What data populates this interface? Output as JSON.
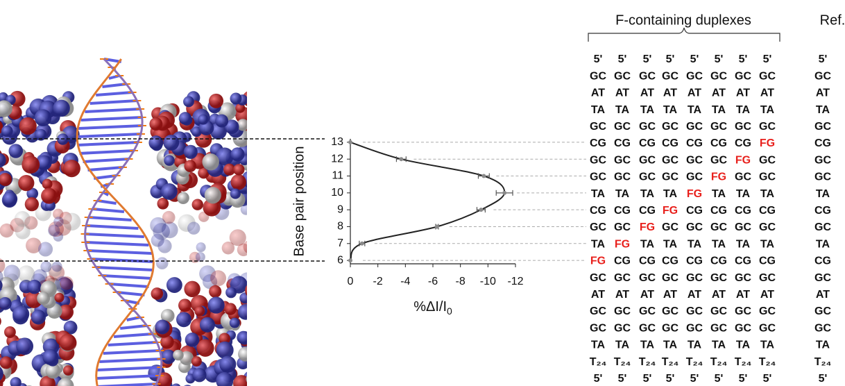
{
  "chart_data": {
    "type": "line",
    "orientation": "horizontal",
    "ylabel": "Base pair position",
    "xlabel": "%ΔI/I",
    "xlabel_sub": "0",
    "positions": [
      13,
      12,
      11,
      10,
      9,
      8,
      7,
      6
    ],
    "values": [
      0,
      -3.7,
      -9.7,
      -11.2,
      -9.5,
      -6.3,
      -0.85,
      0
    ],
    "errors": [
      0,
      0.35,
      0.4,
      0.6,
      0.3,
      0.1,
      0.2,
      0
    ],
    "color": "#222222",
    "marker_color": "#8a8a8a",
    "xlim": [
      0,
      -12
    ],
    "xticks": [
      0,
      -2,
      -4,
      -6,
      -8,
      -10,
      -12
    ],
    "ylim": [
      5.8,
      13.2
    ],
    "yticks": [
      6,
      7,
      8,
      9,
      10,
      11,
      12,
      13
    ]
  },
  "sequences": {
    "header": "F-containing duplexes",
    "ref_header": "Ref.",
    "highlight": "FG",
    "highlight_color": "#e8201c",
    "rows": [
      [
        "5'",
        "5'",
        "5'",
        "5'",
        "5'",
        "5'",
        "5'",
        "5'",
        "5'"
      ],
      [
        "GC",
        "GC",
        "GC",
        "GC",
        "GC",
        "GC",
        "GC",
        "GC",
        "GC"
      ],
      [
        "AT",
        "AT",
        "AT",
        "AT",
        "AT",
        "AT",
        "AT",
        "AT",
        "AT"
      ],
      [
        "TA",
        "TA",
        "TA",
        "TA",
        "TA",
        "TA",
        "TA",
        "TA",
        "TA"
      ],
      [
        "GC",
        "GC",
        "GC",
        "GC",
        "GC",
        "GC",
        "GC",
        "GC",
        "GC"
      ],
      [
        "CG",
        "CG",
        "CG",
        "CG",
        "CG",
        "CG",
        "CG",
        "FG",
        "CG"
      ],
      [
        "GC",
        "GC",
        "GC",
        "GC",
        "GC",
        "GC",
        "FG",
        "GC",
        "GC"
      ],
      [
        "GC",
        "GC",
        "GC",
        "GC",
        "GC",
        "FG",
        "GC",
        "GC",
        "GC"
      ],
      [
        "TA",
        "TA",
        "TA",
        "TA",
        "FG",
        "TA",
        "TA",
        "TA",
        "TA"
      ],
      [
        "CG",
        "CG",
        "CG",
        "FG",
        "CG",
        "CG",
        "CG",
        "CG",
        "CG"
      ],
      [
        "GC",
        "GC",
        "FG",
        "GC",
        "GC",
        "GC",
        "GC",
        "GC",
        "GC"
      ],
      [
        "TA",
        "FG",
        "TA",
        "TA",
        "TA",
        "TA",
        "TA",
        "TA",
        "TA"
      ],
      [
        "FG",
        "CG",
        "CG",
        "CG",
        "CG",
        "CG",
        "CG",
        "CG",
        "CG"
      ],
      [
        "GC",
        "GC",
        "GC",
        "GC",
        "GC",
        "GC",
        "GC",
        "GC",
        "GC"
      ],
      [
        "AT",
        "AT",
        "AT",
        "AT",
        "AT",
        "AT",
        "AT",
        "AT",
        "AT"
      ],
      [
        "GC",
        "GC",
        "GC",
        "GC",
        "GC",
        "GC",
        "GC",
        "GC",
        "GC"
      ],
      [
        "GC",
        "GC",
        "GC",
        "GC",
        "GC",
        "GC",
        "GC",
        "GC",
        "GC"
      ],
      [
        "TA",
        "TA",
        "TA",
        "TA",
        "TA",
        "TA",
        "TA",
        "TA",
        "TA"
      ],
      [
        "T₂₄",
        "T₂₄",
        "T₂₄",
        "T₂₄",
        "T₂₄",
        "T₂₄",
        "T₂₄",
        "T₂₄",
        "T₂₄"
      ],
      [
        "5'",
        "5'",
        "5'",
        "5'",
        "5'",
        "5'",
        "5'",
        "5'",
        "5'"
      ]
    ]
  }
}
